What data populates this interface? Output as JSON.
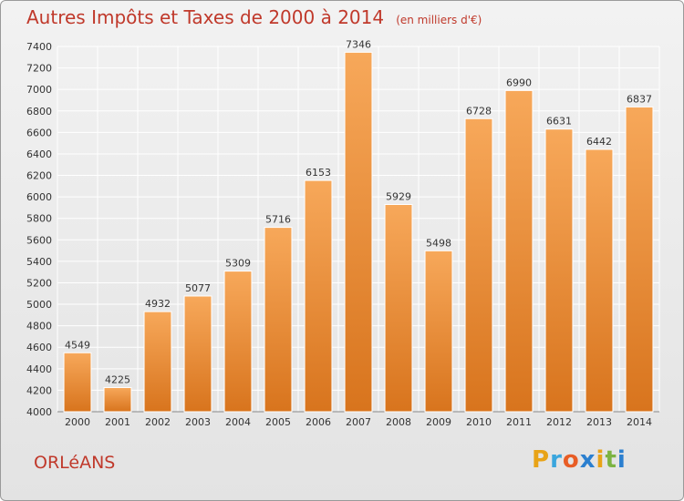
{
  "title": "Autres Impôts et Taxes de 2000 à 2014",
  "unit": "(en milliers d'€)",
  "city": "ORLéANS",
  "logo": {
    "letters": [
      "P",
      "r",
      "o",
      "x",
      "i",
      "t",
      "i"
    ],
    "colors": [
      "#e8a317",
      "#3aa6dd",
      "#e85d25",
      "#2b7fcf",
      "#e8a317",
      "#7cb342",
      "#2b7fcf"
    ]
  },
  "colors": {
    "bar": "#f0943a",
    "bar_dark": "#d97a1f",
    "title": "#c0392b",
    "grid": "#ffffff"
  },
  "chart_data": {
    "type": "bar",
    "categories": [
      "2000",
      "2001",
      "2002",
      "2003",
      "2004",
      "2005",
      "2006",
      "2007",
      "2008",
      "2009",
      "2010",
      "2011",
      "2012",
      "2013",
      "2014"
    ],
    "values": [
      4549,
      4225,
      4932,
      5077,
      5309,
      5716,
      6153,
      7346,
      5929,
      5498,
      6728,
      6990,
      6631,
      6442,
      6837
    ],
    "ylim": [
      4000,
      7400
    ],
    "yticks": [
      4000,
      4200,
      4400,
      4600,
      4800,
      5000,
      5200,
      5400,
      5600,
      5800,
      6000,
      6200,
      6400,
      6600,
      6800,
      7000,
      7200,
      7400
    ],
    "grid": true
  }
}
